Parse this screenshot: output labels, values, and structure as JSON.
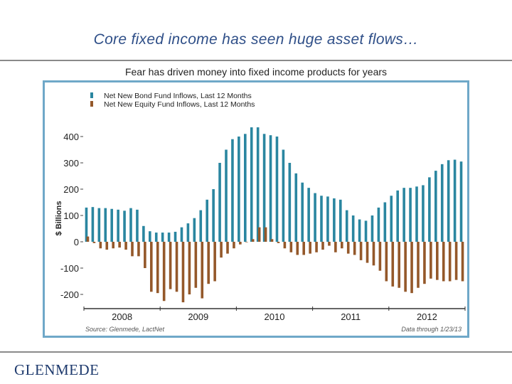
{
  "slide": {
    "title": "Core fixed income has seen huge asset flows…",
    "subtitle": "Fear has driven money into fixed income products for years",
    "logo": "GLENMEDE"
  },
  "colors": {
    "bond": "#2a86a0",
    "equity": "#94582a",
    "title": "#2f4f88"
  },
  "chart_data": {
    "type": "bar",
    "ylabel": "$ Billions",
    "ylim": [
      -230,
      430
    ],
    "yticks": [
      400,
      300,
      200,
      100,
      0,
      -100,
      -200
    ],
    "year_labels": [
      "2008",
      "2009",
      "2010",
      "2011",
      "2012"
    ],
    "legend_position": "top-left",
    "source": "Source: Glenmede, LactNet",
    "data_through": "Data through 1/23/13",
    "series": [
      {
        "name": "Net New Bond Fund Inflows, Last 12 Months",
        "color": "#2a86a0",
        "values": [
          130,
          132,
          128,
          128,
          125,
          122,
          118,
          128,
          122,
          60,
          40,
          35,
          35,
          35,
          38,
          55,
          70,
          90,
          120,
          160,
          200,
          300,
          350,
          390,
          400,
          410,
          435,
          435,
          410,
          405,
          400,
          350,
          300,
          260,
          225,
          205,
          185,
          175,
          172,
          165,
          160,
          120,
          100,
          85,
          80,
          100,
          130,
          150,
          175,
          195,
          205,
          205,
          210,
          215,
          245,
          270,
          295,
          310,
          312,
          305
        ]
      },
      {
        "name": "Net New Equity Fund Inflows, Last 12 Months",
        "color": "#94582a",
        "values": [
          20,
          -5,
          -25,
          -30,
          -25,
          -22,
          -30,
          -55,
          -55,
          -100,
          -190,
          -195,
          -225,
          -180,
          -190,
          -230,
          -200,
          -175,
          -215,
          -160,
          -150,
          -60,
          -45,
          -25,
          -10,
          0,
          10,
          55,
          55,
          10,
          -5,
          -25,
          -40,
          -50,
          -50,
          -45,
          -40,
          -30,
          -15,
          -40,
          -25,
          -45,
          -50,
          -70,
          -80,
          -90,
          -110,
          -150,
          -170,
          -175,
          -190,
          -195,
          -175,
          -160,
          -140,
          -145,
          -150,
          -150,
          -145,
          -150
        ]
      }
    ]
  }
}
